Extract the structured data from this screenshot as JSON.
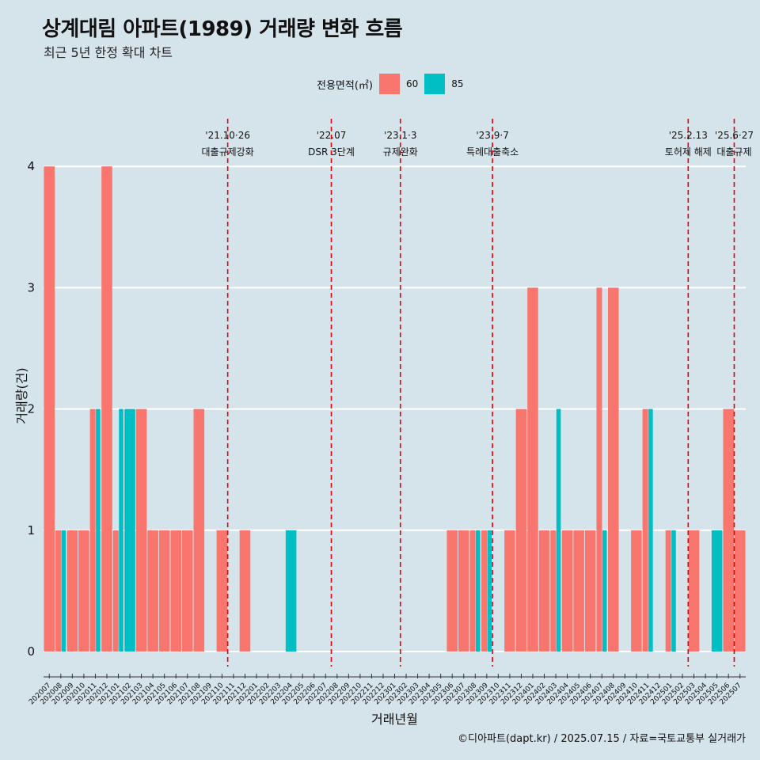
{
  "header": {
    "title": "상계대림 아파트(1989) 거래량 변화 흐름",
    "subtitle": "최근 5년 한정 확대 차트"
  },
  "legend": {
    "title": "전용면적(㎡)",
    "items": [
      {
        "label": "60",
        "color": "#f8766d"
      },
      {
        "label": "85",
        "color": "#00bfc4"
      }
    ]
  },
  "caption": "©디아파트(dapt.kr) / 2025.07.15 / 자료=국토교통부 실거래가",
  "chart_data": {
    "type": "bar",
    "title": "상계대림 아파트(1989) 거래량 변화 흐름",
    "xlabel": "거래년월",
    "ylabel": "거래량(건)",
    "ylim": [
      0,
      4
    ],
    "yticks": [
      0,
      1,
      2,
      3,
      4
    ],
    "grid": true,
    "legend_position": "top",
    "categories": [
      "202007",
      "202008",
      "202009",
      "202010",
      "202011",
      "202012",
      "202101",
      "202102",
      "202103",
      "202104",
      "202105",
      "202106",
      "202107",
      "202108",
      "202109",
      "202110",
      "202111",
      "202112",
      "202201",
      "202202",
      "202203",
      "202204",
      "202205",
      "202206",
      "202207",
      "202208",
      "202209",
      "202210",
      "202211",
      "202212",
      "202301",
      "202302",
      "202303",
      "202304",
      "202305",
      "202306",
      "202307",
      "202308",
      "202309",
      "202310",
      "202311",
      "202312",
      "202401",
      "202402",
      "202403",
      "202404",
      "202405",
      "202406",
      "202407",
      "202408",
      "202409",
      "202410",
      "202411",
      "202412",
      "202501",
      "202502",
      "202503",
      "202504",
      "202505",
      "202506",
      "202507"
    ],
    "series": [
      {
        "name": "60",
        "color": "#f8766d",
        "values": [
          4,
          1,
          1,
          1,
          2,
          4,
          1,
          0,
          2,
          1,
          1,
          1,
          1,
          2,
          0,
          1,
          0,
          1,
          0,
          0,
          0,
          0,
          0,
          0,
          0,
          0,
          0,
          0,
          0,
          0,
          0,
          0,
          0,
          0,
          0,
          1,
          1,
          1,
          1,
          0,
          1,
          2,
          3,
          1,
          1,
          1,
          1,
          1,
          3,
          3,
          0,
          1,
          2,
          0,
          1,
          0,
          1,
          0,
          0,
          2,
          1
        ]
      },
      {
        "name": "85",
        "color": "#00bfc4",
        "values": [
          0,
          1,
          0,
          0,
          2,
          0,
          2,
          2,
          0,
          0,
          0,
          0,
          0,
          0,
          0,
          0,
          0,
          0,
          0,
          0,
          0,
          1,
          0,
          0,
          0,
          0,
          0,
          0,
          0,
          0,
          0,
          0,
          0,
          0,
          0,
          0,
          0,
          1,
          1,
          0,
          0,
          0,
          0,
          0,
          2,
          0,
          0,
          0,
          1,
          0,
          0,
          0,
          2,
          0,
          1,
          0,
          0,
          0,
          1,
          0,
          0
        ]
      }
    ],
    "annotations": [
      {
        "date_label": "'21.10·26",
        "event": "대출규제강화",
        "x_index": 15.5
      },
      {
        "date_label": "'22.07",
        "event": "DSR 3단계",
        "x_index": 24.5
      },
      {
        "date_label": "'23.1·3",
        "event": "규제완화",
        "x_index": 30.5
      },
      {
        "date_label": "'23.9·7",
        "event": "특례대출축소",
        "x_index": 38.5
      },
      {
        "date_label": "'25.2.13",
        "event": "토허제 해제",
        "x_index": 55.5
      },
      {
        "date_label": "'25.6·27",
        "event": "대출규제",
        "x_index": 59.5
      }
    ]
  }
}
